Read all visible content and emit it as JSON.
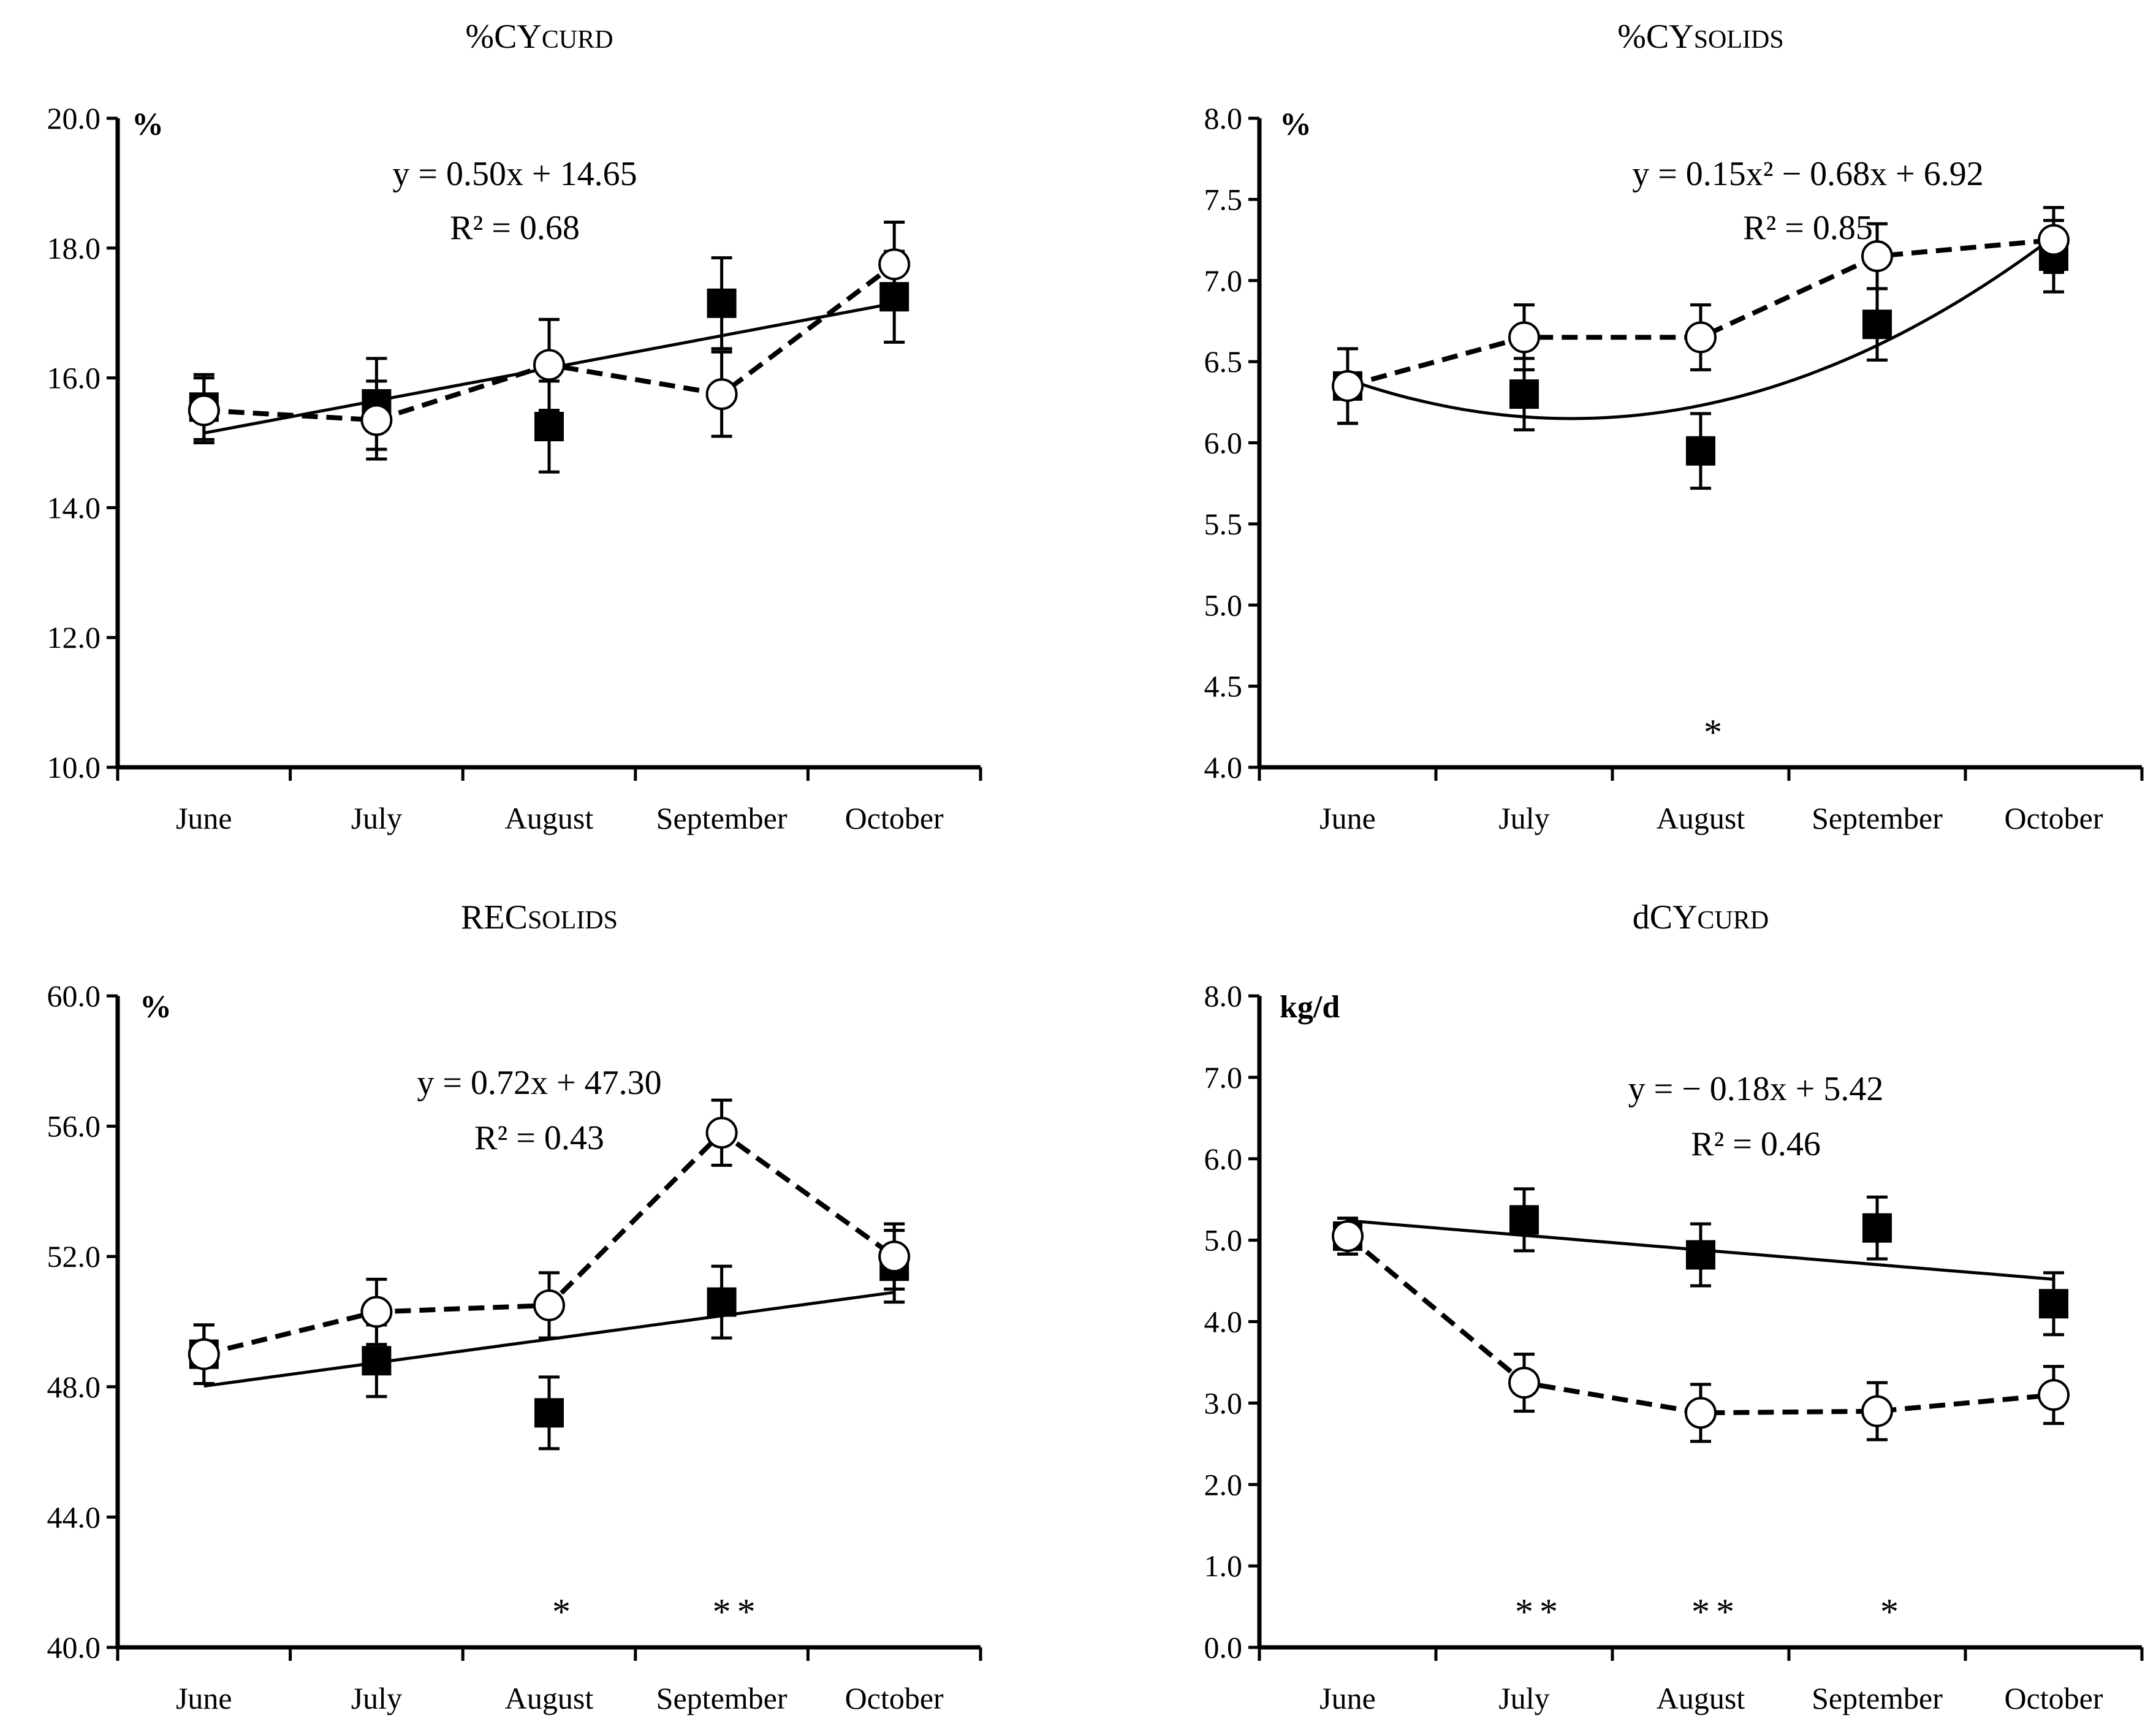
{
  "chart_data": [
    {
      "type": "line",
      "title": {
        "main": "%CY",
        "sub": "CURD"
      },
      "unit": "%",
      "ylim": [
        10.0,
        20.0
      ],
      "yticks": [
        "10.0",
        "12.0",
        "14.0",
        "16.0",
        "18.0",
        "20.0"
      ],
      "categories": [
        "June",
        "July",
        "August",
        "September",
        "October"
      ],
      "equation": "y = 0.50x + 14.65",
      "r2": "R² = 0.68",
      "series": [
        {
          "name": "filled squares",
          "marker": "filled-square",
          "line": "none",
          "values": [
            15.55,
            15.6,
            15.25,
            17.15,
            17.25
          ],
          "error": [
            0.5,
            0.7,
            0.7,
            0.7,
            0.7
          ]
        },
        {
          "name": "open circles",
          "marker": "open-circle",
          "line": "dashed",
          "values": [
            15.5,
            15.35,
            16.2,
            15.75,
            17.75
          ],
          "error": [
            0.5,
            0.6,
            0.7,
            0.65,
            0.65
          ]
        }
      ],
      "trend": {
        "kind": "linear",
        "a": 0.5,
        "b": 14.65,
        "xrange": [
          1,
          5
        ]
      },
      "significance": []
    },
    {
      "type": "line",
      "title": {
        "main": "%CY",
        "sub": "SOLIDS"
      },
      "unit": "%",
      "ylim": [
        4.0,
        8.0
      ],
      "yticks": [
        "4.0",
        "4.5",
        "5.0",
        "5.5",
        "6.0",
        "6.5",
        "7.0",
        "7.5",
        "8.0"
      ],
      "categories": [
        "June",
        "July",
        "August",
        "September",
        "October"
      ],
      "equation": "y = 0.15x² − 0.68x + 6.92",
      "r2": "R² = 0.85",
      "series": [
        {
          "name": "filled squares",
          "marker": "filled-square",
          "line": "none",
          "values": [
            6.35,
            6.3,
            5.95,
            6.73,
            7.15
          ],
          "error": [
            0.23,
            0.22,
            0.23,
            0.22,
            0.22
          ]
        },
        {
          "name": "open circles",
          "marker": "open-circle",
          "line": "dashed",
          "values": [
            6.35,
            6.65,
            6.65,
            7.15,
            7.25
          ],
          "error": [
            0.23,
            0.2,
            0.2,
            0.2,
            0.2
          ]
        }
      ],
      "trend": {
        "kind": "quadratic",
        "a": 0.15,
        "b": -0.68,
        "c": 6.92,
        "xrange": [
          1,
          5
        ]
      },
      "significance": [
        {
          "category": "August",
          "stars": "*"
        }
      ]
    },
    {
      "type": "line",
      "title": {
        "main": "REC",
        "sub": "SOLIDS"
      },
      "unit": "%",
      "ylim": [
        40.0,
        60.0
      ],
      "yticks": [
        "40.0",
        "44.0",
        "48.0",
        "52.0",
        "56.0",
        "60.0"
      ],
      "categories": [
        "June",
        "July",
        "August",
        "September",
        "October"
      ],
      "equation": "y = 0.72x + 47.30",
      "r2": "R² = 0.43",
      "series": [
        {
          "name": "filled squares",
          "marker": "filled-square",
          "line": "none",
          "values": [
            49.0,
            48.8,
            47.2,
            50.6,
            51.7
          ],
          "error": [
            0.9,
            1.1,
            1.1,
            1.1,
            1.1
          ]
        },
        {
          "name": "open circles",
          "marker": "open-circle",
          "line": "dashed",
          "values": [
            49.0,
            50.3,
            50.5,
            55.8,
            52.0
          ],
          "error": [
            0.9,
            1.0,
            1.0,
            1.0,
            1.0
          ]
        }
      ],
      "trend": {
        "kind": "linear",
        "a": 0.72,
        "b": 47.3,
        "xrange": [
          1,
          5
        ]
      },
      "significance": [
        {
          "category": "August",
          "stars": "*"
        },
        {
          "category": "September",
          "stars": "**"
        }
      ]
    },
    {
      "type": "line",
      "title": {
        "main": "dCY",
        "sub": "CURD"
      },
      "unit": "kg/d",
      "ylim": [
        0.0,
        8.0
      ],
      "yticks": [
        "0.0",
        "1.0",
        "2.0",
        "3.0",
        "4.0",
        "5.0",
        "6.0",
        "7.0",
        "8.0"
      ],
      "categories": [
        "June",
        "July",
        "August",
        "September",
        "October"
      ],
      "equation": "y = − 0.18x + 5.42",
      "r2": "R² = 0.46",
      "series": [
        {
          "name": "filled squares",
          "marker": "filled-square",
          "line": "none",
          "values": [
            5.05,
            5.25,
            4.82,
            5.15,
            4.22
          ],
          "error": [
            0.22,
            0.38,
            0.38,
            0.38,
            0.38
          ]
        },
        {
          "name": "open circles",
          "marker": "open-circle",
          "line": "dashed",
          "values": [
            5.05,
            3.25,
            2.88,
            2.9,
            3.1
          ],
          "error": [
            0.22,
            0.35,
            0.35,
            0.35,
            0.35
          ]
        }
      ],
      "trend": {
        "kind": "linear",
        "a": -0.18,
        "b": 5.42,
        "xrange": [
          1,
          5
        ]
      },
      "significance": [
        {
          "category": "July",
          "stars": "**"
        },
        {
          "category": "August",
          "stars": "**"
        },
        {
          "category": "September",
          "stars": "*"
        }
      ]
    }
  ]
}
